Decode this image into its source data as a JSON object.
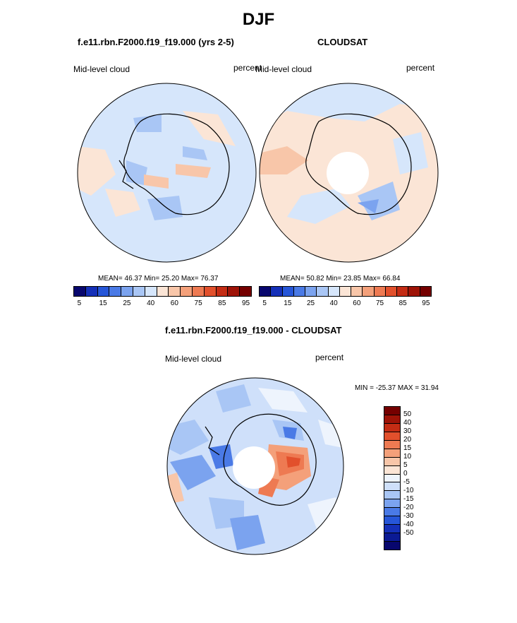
{
  "title": "DJF",
  "panels": [
    {
      "case_title": "f.e11.rbn.F2000.f19_f19.000 (yrs 2-5)",
      "left_label": "Mid-level cloud",
      "right_label": "percent",
      "stats": "MEAN=  46.37  Min=  25.20  Max=  76.37"
    },
    {
      "case_title": "CLOUDSAT",
      "left_label": "Mid-level cloud",
      "right_label": "percent",
      "stats": "MEAN=  50.82  Min=  23.85  Max=  66.84"
    }
  ],
  "diff_panel": {
    "case_title": "f.e11.rbn.F2000.f19_f19.000 - CLOUDSAT",
    "left_label": "Mid-level cloud",
    "right_label": "percent",
    "stats": "MIN = -25.37 MAX =  31.94"
  },
  "colorbar_top": {
    "colors": [
      "#08076e",
      "#1530b8",
      "#2656d8",
      "#4a7ae6",
      "#7ba3ef",
      "#a9c6f5",
      "#d6e6fb",
      "#fbe5d6",
      "#f8c6a9",
      "#f4a07a",
      "#ee7a52",
      "#e2502c",
      "#c42c14",
      "#9e1307",
      "#750000"
    ],
    "labels": [
      "5",
      "15",
      "25",
      "40",
      "60",
      "75",
      "85",
      "95"
    ]
  },
  "colorbar_diff": {
    "colors": [
      "#750000",
      "#9e1307",
      "#c42c14",
      "#e2502c",
      "#ee7a52",
      "#f4a07a",
      "#f8c6a9",
      "#fbe5d6",
      "#eef4fd",
      "#cfe0fa",
      "#a9c6f5",
      "#7ba3ef",
      "#4a7ae6",
      "#2656d8",
      "#1530b8",
      "#0b1a94",
      "#08076e"
    ],
    "labels": [
      "50",
      "40",
      "30",
      "20",
      "15",
      "10",
      "5",
      "0",
      "-5",
      "-10",
      "-15",
      "-20",
      "-30",
      "-40",
      "-50"
    ]
  },
  "chart_data": [
    {
      "type": "heatmap",
      "title": "f.e11.rbn.F2000.f19_f19.000 (yrs 2-5)",
      "variable": "Mid-level cloud",
      "units": "percent",
      "projection": "south polar stereographic",
      "mean": 46.37,
      "min": 25.2,
      "max": 76.37,
      "levels": [
        5,
        10,
        15,
        20,
        25,
        30,
        40,
        50,
        60,
        70,
        75,
        80,
        85,
        90,
        95
      ]
    },
    {
      "type": "heatmap",
      "title": "CLOUDSAT",
      "variable": "Mid-level cloud",
      "units": "percent",
      "projection": "south polar stereographic",
      "mean": 50.82,
      "min": 23.85,
      "max": 66.84,
      "levels": [
        5,
        10,
        15,
        20,
        25,
        30,
        40,
        50,
        60,
        70,
        75,
        80,
        85,
        90,
        95
      ]
    },
    {
      "type": "heatmap",
      "title": "f.e11.rbn.F2000.f19_f19.000 - CLOUDSAT",
      "variable": "Mid-level cloud",
      "units": "percent",
      "projection": "south polar stereographic",
      "min": -25.37,
      "max": 31.94,
      "levels": [
        -50,
        -40,
        -30,
        -20,
        -15,
        -10,
        -5,
        0,
        5,
        10,
        15,
        20,
        30,
        40,
        50
      ]
    }
  ]
}
